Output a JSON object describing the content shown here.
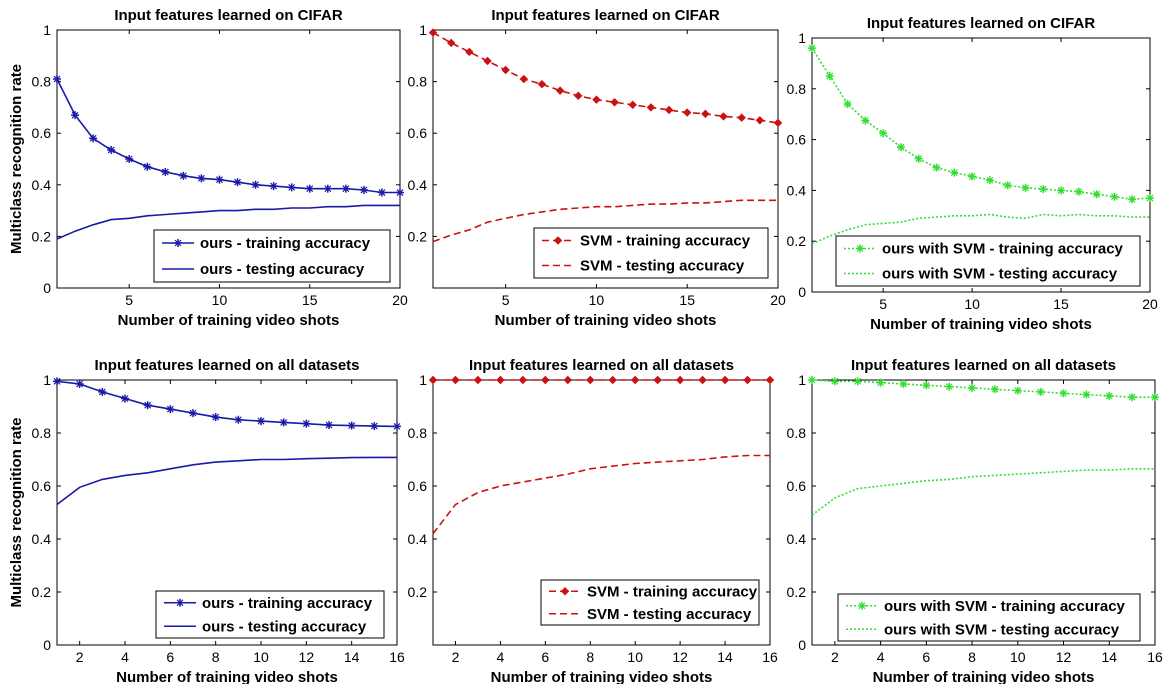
{
  "chart_data": [
    {
      "type": "line",
      "title": "Input features learned on CIFAR",
      "xlabel": "Number of training video shots",
      "ylabel": "Multiclass recognition rate",
      "xlim": [
        1,
        20
      ],
      "ylim": [
        0,
        1
      ],
      "xticks": [
        5,
        10,
        15,
        20
      ],
      "yticks": [
        0,
        0.2,
        0.4,
        0.6,
        0.8,
        1
      ],
      "x": [
        1,
        2,
        3,
        4,
        5,
        6,
        7,
        8,
        9,
        10,
        11,
        12,
        13,
        14,
        15,
        16,
        17,
        18,
        19,
        20
      ],
      "legend_position": "lower-right",
      "series": [
        {
          "name": "ours - training accuracy",
          "color": "#1a1aa8",
          "dash": "solid",
          "marker": "star",
          "values": [
            0.81,
            0.67,
            0.58,
            0.535,
            0.5,
            0.47,
            0.45,
            0.435,
            0.425,
            0.42,
            0.41,
            0.4,
            0.395,
            0.39,
            0.385,
            0.385,
            0.385,
            0.38,
            0.37,
            0.37
          ]
        },
        {
          "name": "ours - testing accuracy",
          "color": "#1a1aa8",
          "dash": "solid",
          "marker": "none",
          "values": [
            0.19,
            0.22,
            0.245,
            0.265,
            0.27,
            0.28,
            0.285,
            0.29,
            0.295,
            0.3,
            0.3,
            0.305,
            0.305,
            0.31,
            0.31,
            0.315,
            0.315,
            0.32,
            0.32,
            0.32
          ]
        }
      ]
    },
    {
      "type": "line",
      "title": "Input features learned on CIFAR",
      "xlabel": "Number of training video shots",
      "ylabel": "",
      "xlim": [
        1,
        20
      ],
      "ylim": [
        0,
        1
      ],
      "xticks": [
        5,
        10,
        15,
        20
      ],
      "yticks": [
        0.2,
        0.4,
        0.6,
        0.8,
        1
      ],
      "x": [
        1,
        2,
        3,
        4,
        5,
        6,
        7,
        8,
        9,
        10,
        11,
        12,
        13,
        14,
        15,
        16,
        17,
        18,
        19,
        20
      ],
      "legend_position": "lower-right",
      "series": [
        {
          "name": "SVM - training accuracy",
          "color": "#cc1111",
          "dash": "dashed",
          "marker": "diamond",
          "values": [
            0.99,
            0.95,
            0.915,
            0.88,
            0.845,
            0.81,
            0.79,
            0.765,
            0.745,
            0.73,
            0.72,
            0.71,
            0.7,
            0.69,
            0.68,
            0.675,
            0.665,
            0.66,
            0.65,
            0.64
          ]
        },
        {
          "name": "SVM - testing accuracy",
          "color": "#cc1111",
          "dash": "dashed",
          "marker": "none",
          "values": [
            0.18,
            0.205,
            0.225,
            0.255,
            0.27,
            0.285,
            0.295,
            0.305,
            0.31,
            0.315,
            0.315,
            0.32,
            0.325,
            0.325,
            0.33,
            0.33,
            0.335,
            0.34,
            0.34,
            0.34
          ]
        }
      ]
    },
    {
      "type": "line",
      "title": "Input features learned on CIFAR",
      "xlabel": "Number of training video shots",
      "ylabel": "",
      "xlim": [
        1,
        20
      ],
      "ylim": [
        0,
        1
      ],
      "xticks": [
        5,
        10,
        15,
        20
      ],
      "yticks": [
        0,
        0.2,
        0.4,
        0.6,
        0.8,
        1
      ],
      "x": [
        1,
        2,
        3,
        4,
        5,
        6,
        7,
        8,
        9,
        10,
        11,
        12,
        13,
        14,
        15,
        16,
        17,
        18,
        19,
        20
      ],
      "legend_position": "lower-right",
      "series": [
        {
          "name": "ours with SVM - training accuracy",
          "color": "#33dd33",
          "dash": "dotted",
          "marker": "star",
          "values": [
            0.96,
            0.85,
            0.74,
            0.675,
            0.625,
            0.57,
            0.525,
            0.49,
            0.47,
            0.455,
            0.44,
            0.42,
            0.41,
            0.405,
            0.4,
            0.395,
            0.385,
            0.375,
            0.365,
            0.37
          ]
        },
        {
          "name": "ours with SVM - testing accuracy",
          "color": "#33dd33",
          "dash": "dotted",
          "marker": "none",
          "values": [
            0.19,
            0.22,
            0.245,
            0.265,
            0.27,
            0.275,
            0.29,
            0.295,
            0.3,
            0.3,
            0.305,
            0.295,
            0.29,
            0.305,
            0.3,
            0.305,
            0.3,
            0.3,
            0.295,
            0.295
          ]
        }
      ]
    },
    {
      "type": "line",
      "title": "Input features learned on all datasets",
      "xlabel": "Number of training video shots",
      "ylabel": "Multiclass recognition rate",
      "xlim": [
        1,
        16
      ],
      "ylim": [
        0,
        1
      ],
      "xticks": [
        2,
        4,
        6,
        8,
        10,
        12,
        14,
        16
      ],
      "yticks": [
        0,
        0.2,
        0.4,
        0.6,
        0.8,
        1
      ],
      "x": [
        1,
        2,
        3,
        4,
        5,
        6,
        7,
        8,
        9,
        10,
        11,
        12,
        13,
        14,
        15,
        16
      ],
      "legend_position": "lower-right",
      "series": [
        {
          "name": "ours - training accuracy",
          "color": "#1a1aa8",
          "dash": "solid",
          "marker": "star",
          "values": [
            0.995,
            0.985,
            0.955,
            0.93,
            0.905,
            0.89,
            0.875,
            0.86,
            0.85,
            0.845,
            0.84,
            0.835,
            0.83,
            0.828,
            0.826,
            0.825
          ]
        },
        {
          "name": "ours - testing accuracy",
          "color": "#1a1aa8",
          "dash": "solid",
          "marker": "none",
          "values": [
            0.53,
            0.595,
            0.625,
            0.64,
            0.65,
            0.665,
            0.68,
            0.69,
            0.695,
            0.7,
            0.7,
            0.703,
            0.705,
            0.707,
            0.708,
            0.708
          ]
        }
      ]
    },
    {
      "type": "line",
      "title": "Input features learned on all datasets",
      "xlabel": "Number of training video shots",
      "ylabel": "",
      "xlim": [
        1,
        16
      ],
      "ylim": [
        0,
        1
      ],
      "xticks": [
        2,
        4,
        6,
        8,
        10,
        12,
        14,
        16
      ],
      "yticks": [
        0.2,
        0.4,
        0.6,
        0.8,
        1
      ],
      "x": [
        1,
        2,
        3,
        4,
        5,
        6,
        7,
        8,
        9,
        10,
        11,
        12,
        13,
        14,
        15,
        16
      ],
      "legend_position": "lower-right",
      "series": [
        {
          "name": "SVM - training accuracy",
          "color": "#cc1111",
          "dash": "dashed",
          "marker": "diamond",
          "values": [
            1,
            1,
            1,
            1,
            1,
            1,
            1,
            1,
            1,
            1,
            1,
            1,
            1,
            1,
            1,
            1
          ]
        },
        {
          "name": "SVM - testing accuracy",
          "color": "#cc1111",
          "dash": "dashed",
          "marker": "none",
          "values": [
            0.42,
            0.53,
            0.575,
            0.6,
            0.615,
            0.63,
            0.645,
            0.665,
            0.675,
            0.685,
            0.69,
            0.695,
            0.7,
            0.71,
            0.715,
            0.715
          ]
        }
      ]
    },
    {
      "type": "line",
      "title": "Input features learned on all datasets",
      "xlabel": "Number of training video shots",
      "ylabel": "",
      "xlim": [
        1,
        16
      ],
      "ylim": [
        0,
        1
      ],
      "xticks": [
        2,
        4,
        6,
        8,
        10,
        12,
        14,
        16
      ],
      "yticks": [
        0,
        0.2,
        0.4,
        0.6,
        0.8,
        1
      ],
      "x": [
        1,
        2,
        3,
        4,
        5,
        6,
        7,
        8,
        9,
        10,
        11,
        12,
        13,
        14,
        15,
        16
      ],
      "legend_position": "lower-right",
      "series": [
        {
          "name": "ours with SVM - training accuracy",
          "color": "#33dd33",
          "dash": "dotted",
          "marker": "star",
          "values": [
            1,
            0.995,
            0.995,
            0.99,
            0.985,
            0.98,
            0.975,
            0.97,
            0.965,
            0.96,
            0.955,
            0.95,
            0.945,
            0.94,
            0.935,
            0.935
          ]
        },
        {
          "name": "ours with SVM - testing accuracy",
          "color": "#33dd33",
          "dash": "dotted",
          "marker": "none",
          "values": [
            0.49,
            0.555,
            0.59,
            0.6,
            0.61,
            0.62,
            0.625,
            0.635,
            0.64,
            0.645,
            0.65,
            0.655,
            0.66,
            0.66,
            0.665,
            0.665
          ]
        }
      ]
    }
  ]
}
